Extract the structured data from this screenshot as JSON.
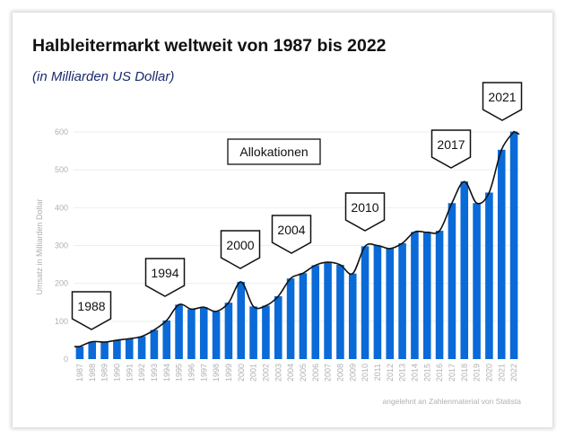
{
  "chart_data": {
    "type": "bar",
    "title": "Halbleitermarkt weltweit von 1987 bis 2022",
    "subtitle": "(in Milliarden US Dollar)",
    "ylabel": "Umsatz in Milliarden Dollar",
    "xlabel": "",
    "ylim": [
      0,
      600
    ],
    "yticks": [
      0,
      100,
      200,
      300,
      400,
      500,
      600
    ],
    "grid": true,
    "bar_color": "#0a6ad8",
    "categories": [
      "1987",
      "1988",
      "1989",
      "1990",
      "1991",
      "1992",
      "1993",
      "1994",
      "1995",
      "1996",
      "1997",
      "1998",
      "1999",
      "2000",
      "2001",
      "2002",
      "2003",
      "2004",
      "2005",
      "2006",
      "2007",
      "2008",
      "2009",
      "2010",
      "2011",
      "2012",
      "2013",
      "2014",
      "2015",
      "2016",
      "2017",
      "2018",
      "2019",
      "2020",
      "2021",
      "2022"
    ],
    "values": [
      33,
      46,
      45,
      50,
      54,
      60,
      77,
      102,
      144,
      132,
      137,
      126,
      149,
      204,
      139,
      141,
      166,
      213,
      227,
      248,
      256,
      249,
      226,
      298,
      300,
      292,
      306,
      336,
      335,
      339,
      412,
      469,
      412,
      440,
      553,
      601
    ],
    "annotations": {
      "box_label": "Allokationen",
      "callouts": [
        "1988",
        "1994",
        "2000",
        "2004",
        "2010",
        "2017",
        "2021"
      ]
    },
    "source": "angelehnt an Zahlenmaterial von Statista"
  }
}
